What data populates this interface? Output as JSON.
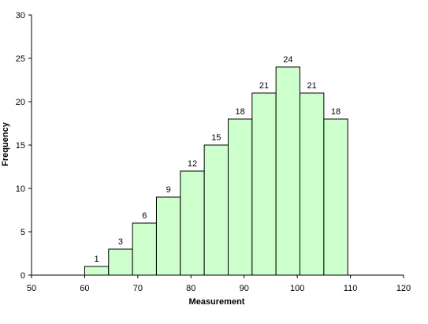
{
  "chart_data": {
    "type": "bar",
    "subtype": "histogram",
    "title": "",
    "xlabel": "Measurement",
    "ylabel": "Frequency",
    "xlim": [
      50,
      120
    ],
    "ylim": [
      0,
      30
    ],
    "x_ticks": [
      50,
      60,
      70,
      80,
      90,
      100,
      110,
      120
    ],
    "y_ticks": [
      0,
      5,
      10,
      15,
      20,
      25,
      30
    ],
    "bin_edges": [
      60,
      64.5,
      69,
      73.5,
      78,
      82.5,
      87,
      91.5,
      96,
      100.5,
      105,
      109.5
    ],
    "values": [
      1,
      3,
      6,
      9,
      12,
      15,
      18,
      21,
      24,
      21,
      18
    ],
    "bar_fill": "#ccffcc",
    "bar_stroke": "#000000",
    "grid": false,
    "legend": "none"
  }
}
